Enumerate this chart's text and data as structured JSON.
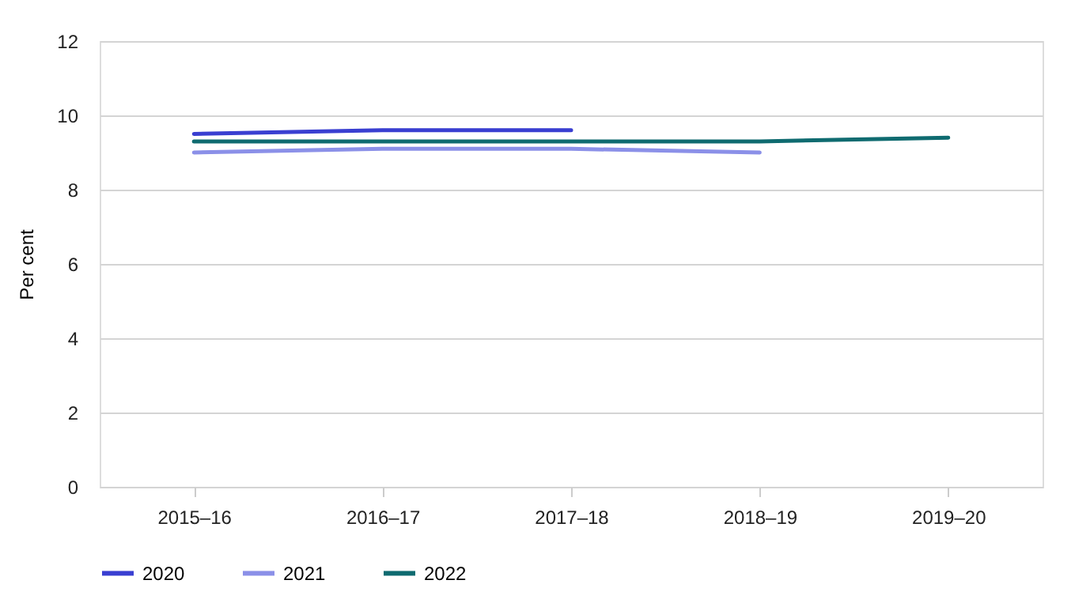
{
  "chart_data": {
    "type": "line",
    "ylabel": "Per cent",
    "categories": [
      "2015–16",
      "2016–17",
      "2017–18",
      "2018–19",
      "2019–20"
    ],
    "series": [
      {
        "name": "2020",
        "color": "#3a3fd1",
        "values": [
          9.5,
          9.6,
          9.6,
          null,
          null
        ]
      },
      {
        "name": "2021",
        "color": "#8b90e8",
        "values": [
          9.0,
          9.1,
          9.1,
          9.0,
          null
        ]
      },
      {
        "name": "2022",
        "color": "#0f6b70",
        "values": [
          9.3,
          9.3,
          9.3,
          9.3,
          9.4
        ]
      }
    ],
    "ylim": [
      0,
      12
    ],
    "yticks": [
      0,
      2,
      4,
      6,
      8,
      10,
      12
    ],
    "grid": "y",
    "legend": "bottom",
    "marker": "none",
    "line_style": "solid"
  }
}
